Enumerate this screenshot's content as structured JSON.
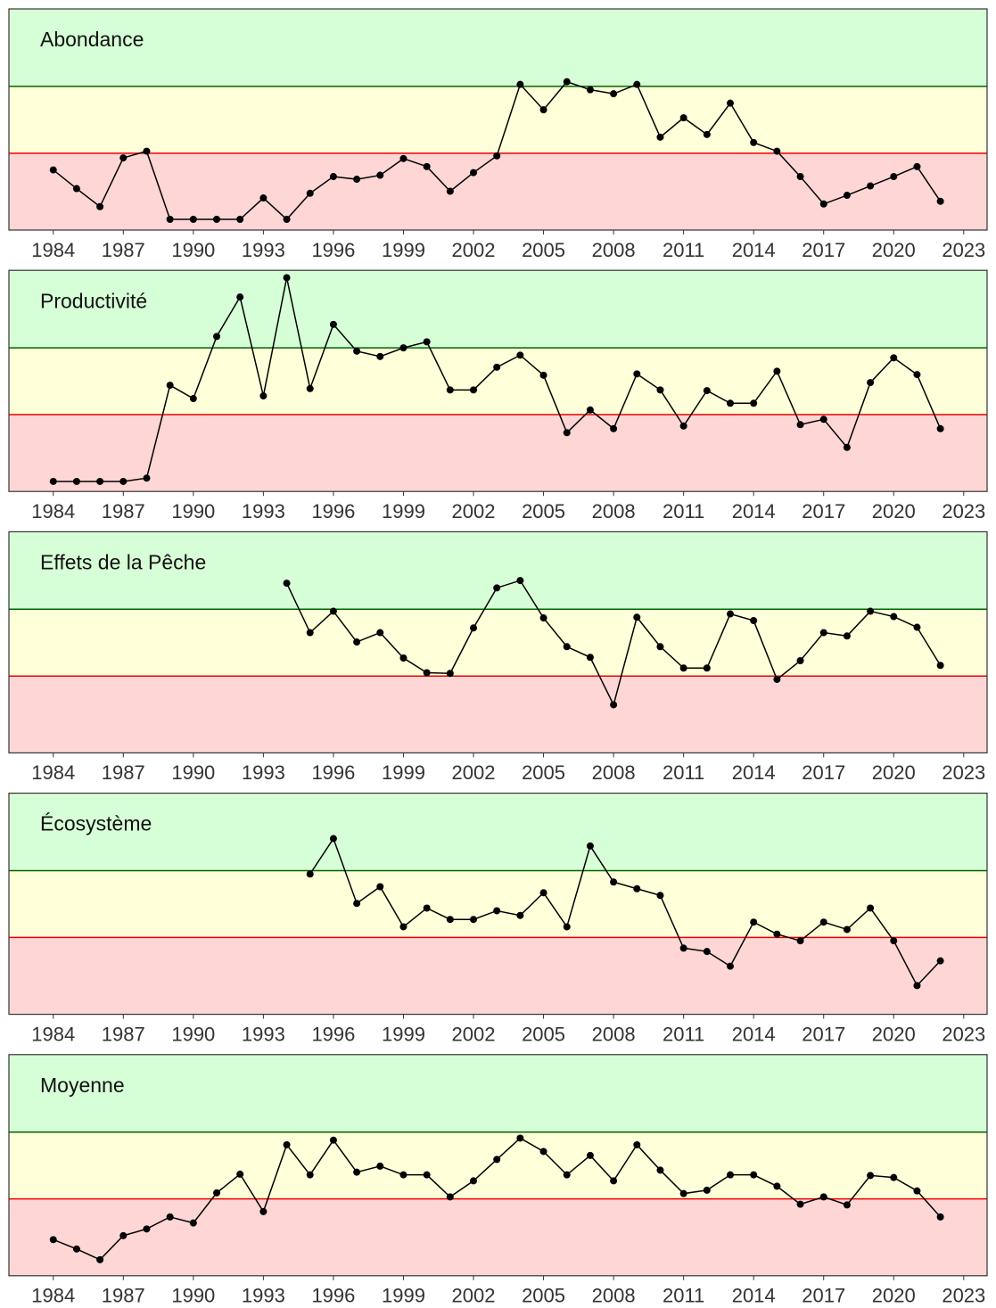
{
  "chart_data": [
    {
      "type": "line",
      "title": "Abondance",
      "color": "#000000",
      "x": [
        1984,
        1985,
        1986,
        1987,
        1988,
        1989,
        1990,
        1991,
        1992,
        1993,
        1994,
        1995,
        1996,
        1997,
        1998,
        1999,
        2000,
        2001,
        2002,
        2003,
        2004,
        2005,
        2006,
        2007,
        2008,
        2009,
        2010,
        2011,
        2012,
        2013,
        2014,
        2015,
        2016,
        2017,
        2018,
        2019,
        2020,
        2021,
        2022
      ],
      "values": [
        -0.25,
        -0.53,
        -0.8,
        -0.07,
        0.03,
        -0.99,
        -0.99,
        -0.99,
        -0.99,
        -0.67,
        -0.99,
        -0.6,
        -0.35,
        -0.39,
        -0.33,
        -0.08,
        -0.2,
        -0.57,
        -0.29,
        -0.04,
        1.03,
        0.65,
        1.07,
        0.95,
        0.89,
        1.03,
        0.24,
        0.53,
        0.28,
        0.75,
        0.16,
        0.03,
        -0.35,
        -0.76,
        -0.63,
        -0.49,
        -0.35,
        -0.2,
        -0.72
      ],
      "xlim": [
        1982.1,
        2024.0
      ],
      "xticks": [
        1984,
        1987,
        1990,
        1993,
        1996,
        1999,
        2002,
        2005,
        2008,
        2011,
        2014,
        2017,
        2020,
        2023
      ],
      "ylim": [
        -1.15,
        2.16
      ],
      "thresholds": [
        0,
        1
      ],
      "threshold_colors": [
        "#ee0000",
        "#006400"
      ],
      "zone_colors": [
        "#ffd6d6",
        "#ffffd9",
        "#d7ffd7"
      ]
    },
    {
      "type": "line",
      "title": "Productivité",
      "color": "#000000",
      "x": [
        1984,
        1985,
        1986,
        1987,
        1988,
        1989,
        1990,
        1991,
        1992,
        1993,
        1994,
        1995,
        1996,
        1997,
        1998,
        1999,
        2000,
        2001,
        2002,
        2003,
        2004,
        2005,
        2006,
        2007,
        2008,
        2009,
        2010,
        2011,
        2012,
        2013,
        2014,
        2015,
        2016,
        2017,
        2018,
        2019,
        2020,
        2021,
        2022
      ],
      "values": [
        -1.0,
        -1.0,
        -1.0,
        -1.0,
        -0.95,
        0.44,
        0.24,
        1.17,
        1.76,
        0.28,
        2.05,
        0.39,
        1.35,
        0.95,
        0.87,
        1.0,
        1.09,
        0.37,
        0.37,
        0.71,
        0.89,
        0.59,
        -0.27,
        0.07,
        -0.21,
        0.61,
        0.37,
        -0.17,
        0.36,
        0.17,
        0.17,
        0.65,
        -0.15,
        -0.07,
        -0.49,
        0.48,
        0.85,
        0.6,
        -0.21
      ],
      "xlim": [
        1982.1,
        2024.0
      ],
      "xticks": [
        1984,
        1987,
        1990,
        1993,
        1996,
        1999,
        2002,
        2005,
        2008,
        2011,
        2014,
        2017,
        2020,
        2023
      ],
      "ylim": [
        -1.15,
        2.16
      ],
      "thresholds": [
        0,
        1
      ],
      "threshold_colors": [
        "#ee0000",
        "#006400"
      ],
      "zone_colors": [
        "#ffd6d6",
        "#ffffd9",
        "#d7ffd7"
      ]
    },
    {
      "type": "line",
      "title": "Effets de la Pêche",
      "color": "#000000",
      "x": [
        1984,
        1985,
        1986,
        1987,
        1988,
        1989,
        1990,
        1991,
        1992,
        1993,
        1994,
        1995,
        1996,
        1997,
        1998,
        1999,
        2000,
        2001,
        2002,
        2003,
        2004,
        2005,
        2006,
        2007,
        2008,
        2009,
        2010,
        2011,
        2012,
        2013,
        2014,
        2015,
        2016,
        2017,
        2018,
        2019,
        2020,
        2021,
        2022
      ],
      "values": [
        null,
        null,
        null,
        null,
        null,
        null,
        null,
        null,
        null,
        null,
        1.39,
        0.65,
        0.97,
        0.51,
        0.65,
        0.27,
        0.05,
        0.04,
        0.72,
        1.32,
        1.43,
        0.87,
        0.44,
        0.28,
        -0.43,
        0.88,
        0.44,
        0.12,
        0.12,
        0.93,
        0.83,
        -0.05,
        0.23,
        0.65,
        0.6,
        0.97,
        0.89,
        0.73,
        0.16
      ],
      "xlim": [
        1982.1,
        2024.0
      ],
      "xticks": [
        1984,
        1987,
        1990,
        1993,
        1996,
        1999,
        2002,
        2005,
        2008,
        2011,
        2014,
        2017,
        2020,
        2023
      ],
      "ylim": [
        -1.15,
        2.16
      ],
      "thresholds": [
        0,
        1
      ],
      "threshold_colors": [
        "#ee0000",
        "#006400"
      ],
      "zone_colors": [
        "#ffd6d6",
        "#ffffd9",
        "#d7ffd7"
      ]
    },
    {
      "type": "line",
      "title": "Écosystème",
      "color": "#000000",
      "x": [
        1984,
        1985,
        1986,
        1987,
        1988,
        1989,
        1990,
        1991,
        1992,
        1993,
        1994,
        1995,
        1996,
        1997,
        1998,
        1999,
        2000,
        2001,
        2002,
        2003,
        2004,
        2005,
        2006,
        2007,
        2008,
        2009,
        2010,
        2011,
        2012,
        2013,
        2014,
        2015,
        2016,
        2017,
        2018,
        2019,
        2020,
        2021,
        2022
      ],
      "values": [
        null,
        null,
        null,
        null,
        null,
        null,
        null,
        null,
        null,
        null,
        null,
        0.95,
        1.48,
        0.51,
        0.76,
        0.16,
        0.44,
        0.27,
        0.27,
        0.4,
        0.33,
        0.67,
        0.16,
        1.37,
        0.83,
        0.73,
        0.63,
        -0.16,
        -0.21,
        -0.43,
        0.23,
        0.05,
        -0.05,
        0.23,
        0.12,
        0.44,
        -0.05,
        -0.72,
        -0.35
      ],
      "xlim": [
        1982.1,
        2024.0
      ],
      "xticks": [
        1984,
        1987,
        1990,
        1993,
        1996,
        1999,
        2002,
        2005,
        2008,
        2011,
        2014,
        2017,
        2020,
        2023
      ],
      "ylim": [
        -1.15,
        2.16
      ],
      "thresholds": [
        0,
        1
      ],
      "threshold_colors": [
        "#ee0000",
        "#006400"
      ],
      "zone_colors": [
        "#ffd6d6",
        "#ffffd9",
        "#d7ffd7"
      ]
    },
    {
      "type": "line",
      "title": "Moyenne",
      "color": "#000000",
      "x": [
        1984,
        1985,
        1986,
        1987,
        1988,
        1989,
        1990,
        1991,
        1992,
        1993,
        1994,
        1995,
        1996,
        1997,
        1998,
        1999,
        2000,
        2001,
        2002,
        2003,
        2004,
        2005,
        2006,
        2007,
        2008,
        2009,
        2010,
        2011,
        2012,
        2013,
        2014,
        2015,
        2016,
        2017,
        2018,
        2019,
        2020,
        2021,
        2022
      ],
      "values": [
        -0.61,
        -0.75,
        -0.91,
        -0.55,
        -0.45,
        -0.27,
        -0.36,
        0.09,
        0.37,
        -0.19,
        0.81,
        0.36,
        0.88,
        0.4,
        0.49,
        0.36,
        0.36,
        0.03,
        0.27,
        0.59,
        0.91,
        0.71,
        0.36,
        0.65,
        0.27,
        0.81,
        0.43,
        0.08,
        0.13,
        0.36,
        0.36,
        0.19,
        -0.08,
        0.03,
        -0.09,
        0.35,
        0.32,
        0.12,
        -0.27
      ],
      "xlim": [
        1982.1,
        2024.0
      ],
      "xticks": [
        1984,
        1987,
        1990,
        1993,
        1996,
        1999,
        2002,
        2005,
        2008,
        2011,
        2014,
        2017,
        2020,
        2023
      ],
      "ylim": [
        -1.15,
        2.16
      ],
      "thresholds": [
        0,
        1
      ],
      "threshold_colors": [
        "#ee0000",
        "#006400"
      ],
      "zone_colors": [
        "#ffd6d6",
        "#ffffd9",
        "#d7ffd7"
      ]
    }
  ]
}
